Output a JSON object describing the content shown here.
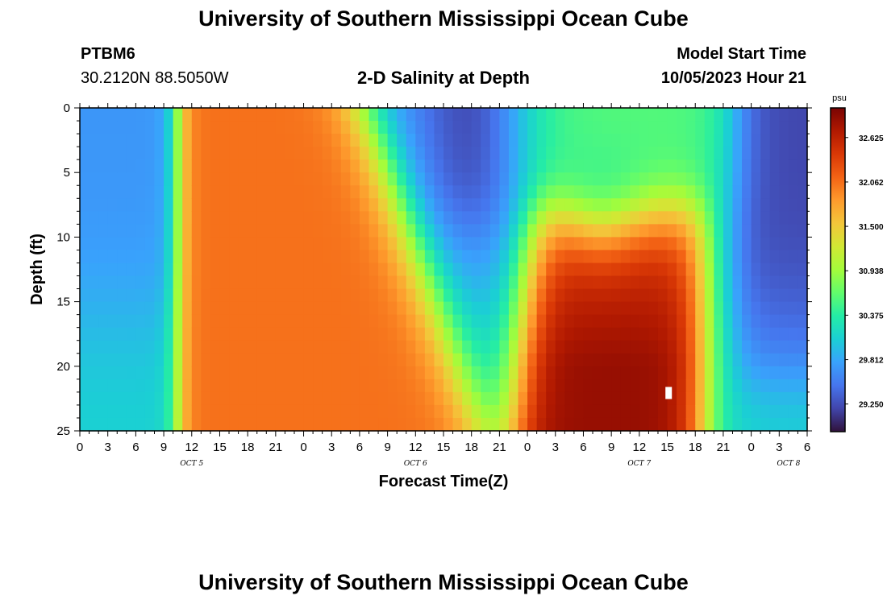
{
  "header": {
    "title": "University of Southern Mississippi Ocean Cube",
    "station": "PTBM6",
    "coords": "30.2120N  88.5050W",
    "subtitle": "2-D Salinity at Depth",
    "start_label": "Model Start Time",
    "start_value": "10/05/2023 Hour 21"
  },
  "footer": {
    "title": "University of Southern Mississippi Ocean Cube"
  },
  "chart_data": {
    "type": "heatmap",
    "variable": "salinity",
    "xlabel": "Forecast Time(Z)",
    "ylabel": "Depth (ft)",
    "x_range_hours": [
      0,
      78
    ],
    "y_range_ft": [
      0,
      25
    ],
    "x_ticks": [
      "0",
      "3",
      "6",
      "9",
      "12",
      "15",
      "18",
      "21",
      "0",
      "3",
      "6",
      "9",
      "12",
      "15",
      "18",
      "21",
      "0",
      "3",
      "6",
      "9",
      "12",
      "15",
      "18",
      "21",
      "0",
      "3",
      "6"
    ],
    "y_ticks": [
      "0",
      "5",
      "10",
      "15",
      "20",
      "25"
    ],
    "date_labels": [
      {
        "label": "OCT 5",
        "hour": 12
      },
      {
        "label": "OCT 6",
        "hour": 36
      },
      {
        "label": "OCT 7",
        "hour": 60
      },
      {
        "label": "OCT 8",
        "hour": 76
      }
    ],
    "colorbar": {
      "unit": "psu",
      "ticks": [
        "32.625",
        "32.062",
        "31.500",
        "30.938",
        "30.375",
        "29.812",
        "29.250"
      ],
      "tick_values": [
        32.625,
        32.062,
        31.5,
        30.938,
        30.375,
        29.812,
        29.25
      ],
      "range": [
        28.9,
        33.0
      ],
      "colors": [
        "#30123b",
        "#4145ab",
        "#4675ed",
        "#39a2fc",
        "#1bcfd4",
        "#24eca6",
        "#61fc6c",
        "#a4fc3b",
        "#d1e834",
        "#f3c63a",
        "#fe9b2d",
        "#f36315",
        "#d93806",
        "#b11901",
        "#7a0403"
      ]
    },
    "regions": [
      {
        "name": "low-salinity band",
        "hours": [
          0,
          10
        ],
        "depth_ft": [
          0,
          25
        ],
        "salinity": [
          29.6,
          30.3
        ]
      },
      {
        "name": "high-salinity plume 1",
        "hours": [
          11,
          34
        ],
        "depth_ft": [
          0,
          25
        ],
        "salinity": [
          31.9,
          32.3
        ]
      },
      {
        "name": "low-salinity trough",
        "hours": [
          36,
          48
        ],
        "depth_ft": [
          0,
          10
        ],
        "salinity": [
          29.3,
          29.8
        ]
      },
      {
        "name": "high-salinity plume 2",
        "hours": [
          46,
          68
        ],
        "depth_ft": [
          6,
          25
        ],
        "salinity": [
          32.2,
          32.9
        ]
      },
      {
        "name": "low-salinity end",
        "hours": [
          71,
          78
        ],
        "depth_ft": [
          0,
          25
        ],
        "salinity": [
          29.2,
          29.9
        ]
      }
    ]
  }
}
